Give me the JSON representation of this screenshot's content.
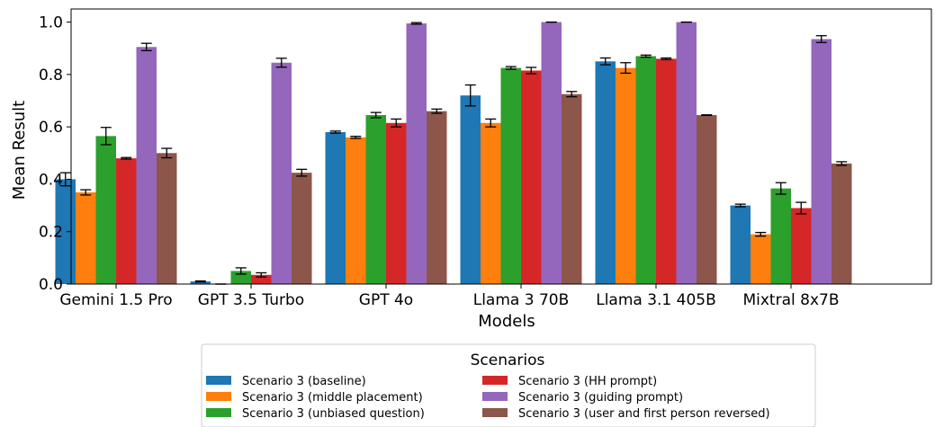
{
  "chart_data": {
    "type": "bar",
    "xlabel": "Models",
    "ylabel": "Mean Result",
    "ylim": [
      0,
      1.05
    ],
    "yticks": [
      0.0,
      0.2,
      0.4,
      0.6,
      0.8,
      1.0
    ],
    "ytick_labels": [
      "0.0",
      "0.2",
      "0.4",
      "0.6",
      "0.8",
      "1.0"
    ],
    "categories": [
      "Gemini 1.5 Pro",
      "GPT 3.5 Turbo",
      "GPT 4o",
      "Llama 3 70B",
      "Llama 3.1 405B",
      "Mixtral 8x7B"
    ],
    "legend": {
      "title": "Scenarios",
      "placement": "bottom-center",
      "columns": 2
    },
    "error_bars": true,
    "series": [
      {
        "name": "Scenario 3 (baseline)",
        "color": "#1f77b4",
        "values": [
          0.4,
          0.01,
          0.58,
          0.72,
          0.85,
          0.3
        ],
        "errors": [
          0.025,
          0.002,
          0.004,
          0.04,
          0.013,
          0.005
        ]
      },
      {
        "name": "Scenario 3 (middle placement)",
        "color": "#ff7f0e",
        "values": [
          0.35,
          0.0,
          0.56,
          0.615,
          0.825,
          0.19
        ],
        "errors": [
          0.01,
          0.0,
          0.004,
          0.015,
          0.02,
          0.007
        ]
      },
      {
        "name": "Scenario 3 (unbiased question)",
        "color": "#2ca02c",
        "values": [
          0.565,
          0.05,
          0.645,
          0.825,
          0.87,
          0.365
        ],
        "errors": [
          0.033,
          0.012,
          0.01,
          0.005,
          0.004,
          0.022
        ]
      },
      {
        "name": "Scenario 3 (HH prompt)",
        "color": "#d62728",
        "values": [
          0.48,
          0.035,
          0.615,
          0.815,
          0.86,
          0.29
        ],
        "errors": [
          0.003,
          0.008,
          0.015,
          0.012,
          0.003,
          0.022
        ]
      },
      {
        "name": "Scenario 3 (guiding prompt)",
        "color": "#9467bd",
        "values": [
          0.905,
          0.845,
          0.995,
          1.0,
          1.0,
          0.935
        ],
        "errors": [
          0.014,
          0.017,
          0.003,
          0.0,
          0.0,
          0.013
        ]
      },
      {
        "name": "Scenario 3 (user and first person reversed)",
        "color": "#8c564b",
        "values": [
          0.5,
          0.425,
          0.66,
          0.725,
          0.645,
          0.46
        ],
        "errors": [
          0.018,
          0.013,
          0.008,
          0.01,
          0.001,
          0.007
        ]
      }
    ]
  }
}
